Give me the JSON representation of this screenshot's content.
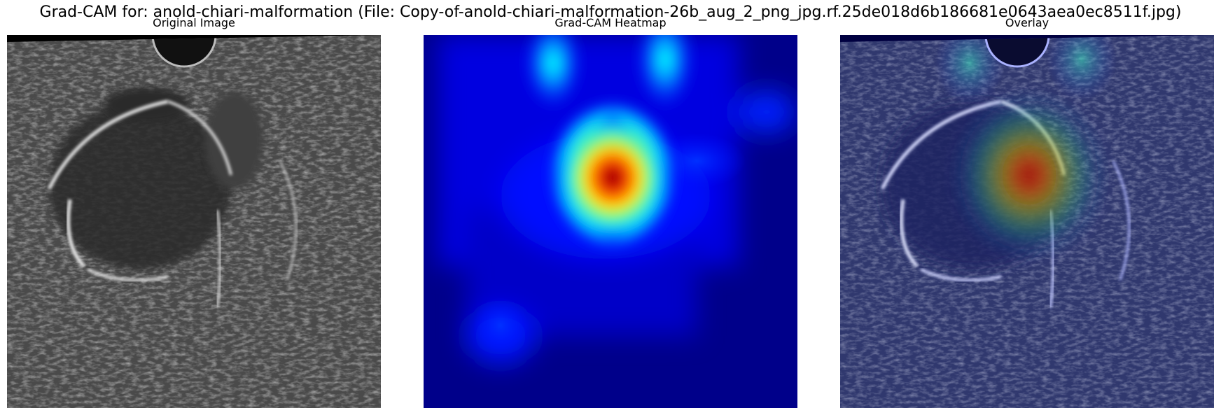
{
  "figure": {
    "title": "Grad-CAM for: anold-chiari-malformation (File: Copy-of-anold-chiari-malformation-26b_aug_2_png_jpg.rf.25de018d6b186681e0643aea0ec8511f.jpg)"
  },
  "panels": [
    {
      "title": "Original Image"
    },
    {
      "title": "Grad-CAM Heatmap"
    },
    {
      "title": "Overlay"
    }
  ],
  "colors": {
    "background": "#ffffff",
    "jet_low": "#00007f",
    "jet_mid": "#00ffff",
    "jet_high": "#7f0000"
  }
}
